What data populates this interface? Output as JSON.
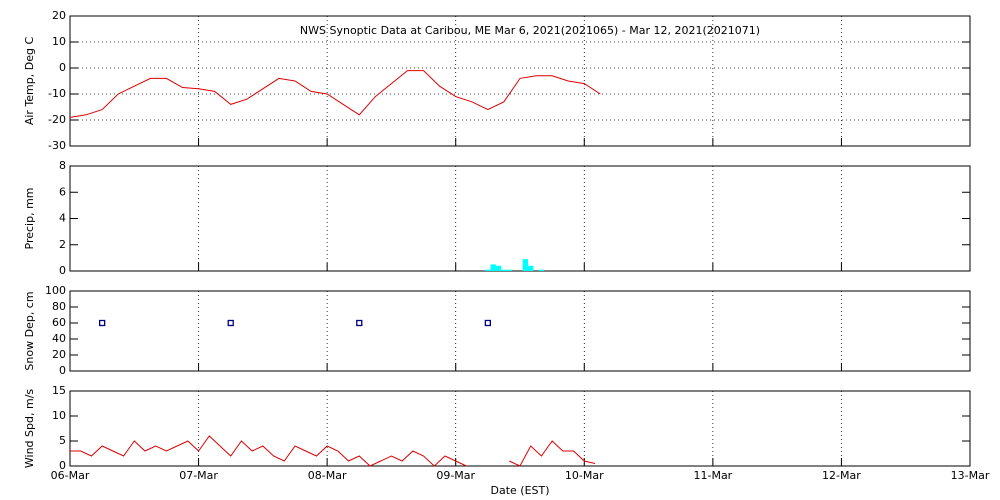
{
  "chart_data": [
    {
      "type": "line",
      "title": "NWS Synoptic Data at Caribou, ME   Mar  6, 2021(2021065) - Mar 12, 2021(2021071)",
      "ylabel": "Air Temp, Deg C",
      "grid": "xy",
      "x": [
        0,
        3,
        6,
        9,
        12,
        15,
        18,
        21,
        24,
        27,
        30,
        33,
        36,
        39,
        42,
        45,
        48,
        51,
        54,
        57,
        60,
        63,
        66,
        69,
        72,
        75,
        78,
        81,
        84,
        87,
        90,
        93,
        96,
        99
      ],
      "series": [
        {
          "color": "#dd0000",
          "values": [
            -19,
            -18,
            -16,
            -10,
            -7,
            -4,
            -4,
            -7.5,
            -8,
            -9,
            -14,
            -12,
            -8,
            -4,
            -5,
            -9,
            -10,
            -14,
            -18,
            -11,
            -6,
            -1,
            -1,
            -7,
            -11,
            -13,
            -16,
            -13,
            -4,
            -3,
            -3,
            -5,
            -6,
            -10
          ]
        }
      ],
      "xlim": [
        0,
        168
      ],
      "xticks": [
        0,
        24,
        48,
        72,
        96,
        120,
        144,
        168
      ],
      "ylim": [
        -30,
        20
      ],
      "yticks": [
        -30,
        -20,
        -10,
        0,
        10,
        20
      ]
    },
    {
      "type": "bar",
      "ylabel": "Precip, mm",
      "grid": "x",
      "x": [
        78,
        79,
        80,
        81,
        82,
        83,
        84,
        85,
        86,
        87,
        88
      ],
      "series": [
        {
          "color": "#00ffff",
          "values": [
            0.1,
            0.5,
            0.4,
            0.1,
            0.1,
            0,
            0,
            0.9,
            0.4,
            0,
            0.1
          ]
        }
      ],
      "xlim": [
        0,
        168
      ],
      "xticks": [
        0,
        24,
        48,
        72,
        96,
        120,
        144,
        168
      ],
      "ylim": [
        0,
        8
      ],
      "yticks": [
        0,
        2,
        4,
        6,
        8
      ]
    },
    {
      "type": "scatter",
      "ylabel": "Snow Dep, cm",
      "grid": "x",
      "x": [
        6,
        30,
        54,
        78
      ],
      "series": [
        {
          "color": "#000080",
          "values": [
            60,
            60,
            60,
            60
          ]
        }
      ],
      "xlim": [
        0,
        168
      ],
      "xticks": [
        0,
        24,
        48,
        72,
        96,
        120,
        144,
        168
      ],
      "ylim": [
        0,
        100
      ],
      "yticks": [
        0,
        20,
        40,
        60,
        80,
        100
      ]
    },
    {
      "type": "line",
      "ylabel": "Wind Spd, m/s",
      "xlabel": "Date (EST)",
      "grid": "x",
      "x": [
        0,
        2,
        4,
        6,
        8,
        10,
        12,
        14,
        16,
        18,
        20,
        22,
        24,
        26,
        28,
        30,
        32,
        34,
        36,
        38,
        40,
        42,
        44,
        46,
        48,
        50,
        52,
        54,
        56,
        58,
        60,
        62,
        64,
        66,
        68,
        70,
        72,
        74,
        76,
        78,
        80,
        82,
        84,
        86,
        88,
        90,
        92,
        94,
        96,
        98
      ],
      "series": [
        {
          "color": "#dd0000",
          "values": [
            3,
            3,
            2,
            4,
            3,
            2,
            5,
            3,
            4,
            3,
            4,
            5,
            3,
            6,
            4,
            2,
            5,
            3,
            4,
            2,
            1,
            4,
            3,
            2,
            4,
            3,
            1,
            2,
            0,
            1,
            2,
            1,
            3,
            2,
            0,
            2,
            1,
            0,
            null,
            null,
            null,
            1,
            0,
            4,
            2,
            5,
            3,
            3,
            1,
            0.5
          ]
        }
      ],
      "xlim": [
        0,
        168
      ],
      "xticks": [
        {
          "value": 0,
          "label": "06-Mar"
        },
        {
          "value": 24,
          "label": "07-Mar"
        },
        {
          "value": 48,
          "label": "08-Mar"
        },
        {
          "value": 72,
          "label": "09-Mar"
        },
        {
          "value": 96,
          "label": "10-Mar"
        },
        {
          "value": 120,
          "label": "11-Mar"
        },
        {
          "value": 144,
          "label": "12-Mar"
        },
        {
          "value": 168,
          "label": "13-Mar"
        }
      ],
      "ylim": [
        0,
        15
      ],
      "yticks": [
        0,
        5,
        10,
        15
      ]
    }
  ]
}
